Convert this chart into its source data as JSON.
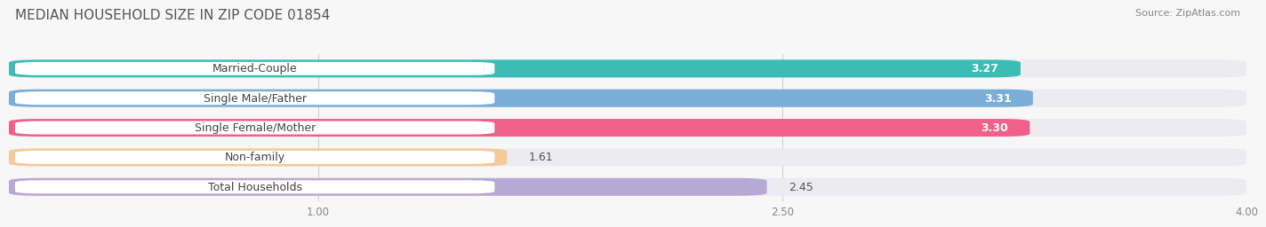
{
  "title": "MEDIAN HOUSEHOLD SIZE IN ZIP CODE 01854",
  "source": "Source: ZipAtlas.com",
  "categories": [
    "Married-Couple",
    "Single Male/Father",
    "Single Female/Mother",
    "Non-family",
    "Total Households"
  ],
  "values": [
    3.27,
    3.31,
    3.3,
    1.61,
    2.45
  ],
  "bar_colors": [
    "#3bbdb5",
    "#7aadd8",
    "#f0608a",
    "#f5c99a",
    "#b8a8d4"
  ],
  "bar_bg_color": "#ebebf0",
  "xlim": [
    0,
    4.0
  ],
  "xticks": [
    1.0,
    2.5,
    4.0
  ],
  "xtick_labels": [
    "1.00",
    "2.50",
    "4.00"
  ],
  "title_fontsize": 11,
  "source_fontsize": 8,
  "label_fontsize": 9,
  "value_fontsize": 9,
  "bar_height": 0.6,
  "background_color": "#f7f7f7",
  "label_text_color": "#444444"
}
